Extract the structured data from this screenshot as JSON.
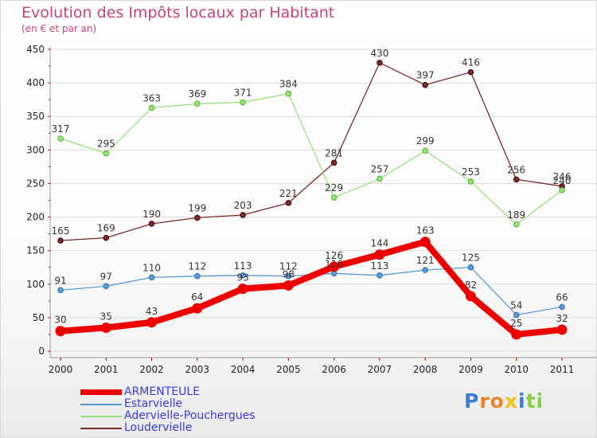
{
  "header": {
    "title": "Evolution des Impôts locaux par Habitant",
    "subtitle": "(en € et par an)"
  },
  "logo": {
    "text": "Proxiti"
  },
  "colors": {
    "ARMENTEULE": "#ee0000",
    "Estarvielle": "#5b9bd5",
    "Adervielle-Pouchergues": "#99e27a",
    "Loudervielle": "#7b2a2a",
    "grid": "#dcdcdc",
    "title": "#c8417a"
  },
  "chart_data": {
    "type": "line",
    "title": "Evolution des Impôts locaux par Habitant",
    "subtitle": "(en € et par an)",
    "xlabel": "",
    "ylabel": "",
    "x": [
      "2000",
      "2001",
      "2002",
      "2003",
      "2004",
      "2005",
      "2006",
      "2007",
      "2008",
      "2009",
      "2010",
      "2011"
    ],
    "ylim": [
      0,
      450
    ],
    "yticks": [
      "0",
      "50",
      "100",
      "150",
      "200",
      "250",
      "300",
      "350",
      "400",
      "450"
    ],
    "grid": "horizontal",
    "legend_position": "bottom-left",
    "series": [
      {
        "name": "ARMENTEULE",
        "values": [
          30,
          35,
          43,
          64,
          93,
          98,
          126,
          144,
          163,
          82,
          25,
          32
        ],
        "labels": [
          "30",
          "35",
          "43",
          "64",
          "93",
          "98",
          "126",
          "144",
          "163",
          "82",
          "25",
          "32"
        ]
      },
      {
        "name": "Estarvielle",
        "values": [
          91,
          97,
          110,
          112,
          113,
          112,
          116,
          113,
          121,
          125,
          54,
          66
        ],
        "labels": [
          "91",
          "97",
          "110",
          "112",
          "113",
          "112",
          "116",
          "113",
          "121",
          "125",
          "54",
          "66"
        ]
      },
      {
        "name": "Adervielle-Pouchergues",
        "values": [
          317,
          295,
          363,
          369,
          371,
          384,
          229,
          257,
          299,
          253,
          189,
          240
        ],
        "labels": [
          "317",
          "295",
          "363",
          "369",
          "371",
          "384",
          "229",
          "257",
          "299",
          "253",
          "189",
          "240"
        ]
      },
      {
        "name": "Loudervielle",
        "values": [
          165,
          169,
          190,
          199,
          203,
          221,
          281,
          430,
          397,
          416,
          256,
          246
        ],
        "labels": [
          "165",
          "169",
          "190",
          "199",
          "203",
          "221",
          "281",
          "430",
          "397",
          "416",
          "256",
          "246"
        ]
      }
    ]
  }
}
